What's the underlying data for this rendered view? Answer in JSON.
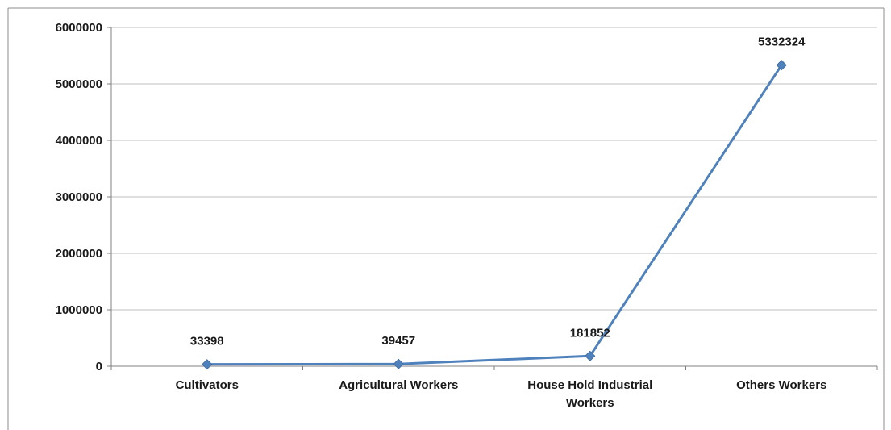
{
  "chart_data": {
    "type": "line",
    "title": "",
    "xlabel": "",
    "ylabel": "",
    "categories": [
      "Cultivators",
      "Agricultural Workers",
      "House Hold Industrial Workers",
      "Others Workers"
    ],
    "category_lines": [
      [
        "Cultivators"
      ],
      [
        "Agricultural Workers"
      ],
      [
        "House Hold Industrial",
        "Workers"
      ],
      [
        "Others Workers"
      ]
    ],
    "series": [
      {
        "values": [
          33398,
          39457,
          181852,
          5332324
        ],
        "data_labels": [
          "33398",
          "39457",
          "181852",
          "5332324"
        ],
        "color": "#4f81bd",
        "marker": "diamond"
      }
    ],
    "ylim": [
      0,
      6000000
    ],
    "yticks": [
      0,
      1000000,
      2000000,
      3000000,
      4000000,
      5000000,
      6000000
    ],
    "ytick_labels": [
      "0",
      "1000000",
      "2000000",
      "3000000",
      "4000000",
      "5000000",
      "6000000"
    ],
    "grid": true,
    "legend": "none",
    "colors": {
      "gridline": "#bfbfbf",
      "axis": "#808080",
      "frame": "#8c8c8c"
    }
  }
}
